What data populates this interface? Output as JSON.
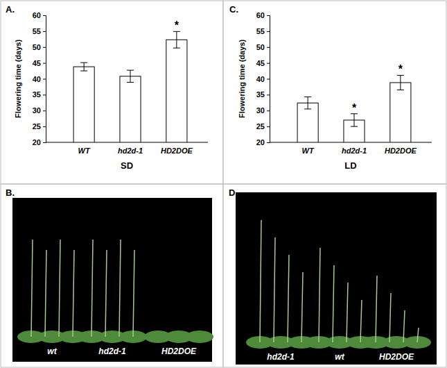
{
  "chart_data": [
    {
      "type": "bar",
      "title": "A.",
      "x_label": "SD",
      "y_label": "Flowering time (days)",
      "categories": [
        "WT",
        "hd2d-1",
        "HD2DOE"
      ],
      "values": [
        43.8,
        40.8,
        52.3
      ],
      "errors": [
        1.3,
        1.9,
        2.6
      ],
      "significance": [
        null,
        null,
        "*"
      ],
      "color": "#ffffff",
      "ylim": [
        20,
        60
      ],
      "yticks": [
        20,
        25,
        30,
        35,
        40,
        45,
        50,
        55,
        60
      ],
      "grid": false
    },
    {
      "type": "bar",
      "title": "C.",
      "x_label": "LD",
      "y_label": "Flowering time (days)",
      "categories": [
        "WT",
        "hd2d-1",
        "HD2DOE"
      ],
      "values": [
        32.4,
        27.0,
        38.8
      ],
      "errors": [
        1.9,
        2.0,
        2.3
      ],
      "significance": [
        null,
        "*",
        "*"
      ],
      "color": "#ffffff",
      "ylim": [
        20,
        60
      ],
      "yticks": [
        20,
        25,
        30,
        35,
        40,
        45,
        50,
        55,
        60
      ],
      "grid": false
    }
  ],
  "photos": [
    {
      "panel": "B.",
      "labels": [
        "wt",
        "hd2d-1",
        "HD2DOE"
      ]
    },
    {
      "panel": "D.",
      "labels": [
        "hd2d-1",
        "wt",
        "HD2DOE"
      ]
    }
  ]
}
